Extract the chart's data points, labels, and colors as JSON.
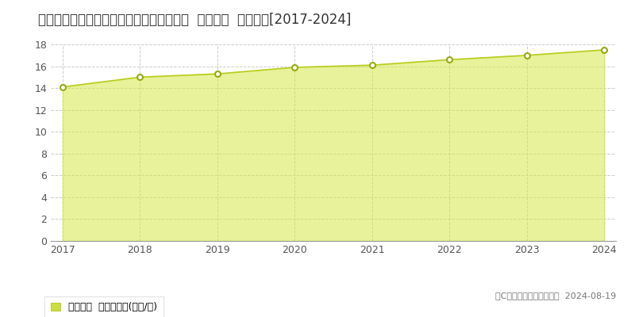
{
  "title": "埼玉県日高市大字大谷沢字藤塚１５番３外  地価公示  地価推移[2017-2024]",
  "years": [
    2017,
    2018,
    2019,
    2020,
    2021,
    2022,
    2023,
    2024
  ],
  "values": [
    14.1,
    15.0,
    15.3,
    15.9,
    16.1,
    16.6,
    17.0,
    17.5
  ],
  "ylim": [
    0,
    18
  ],
  "yticks": [
    0,
    2,
    4,
    6,
    8,
    10,
    12,
    14,
    16,
    18
  ],
  "fill_color": "#d4e84a",
  "fill_alpha": 0.55,
  "line_color": "#b8cc20",
  "marker_facecolor": "#ffffff",
  "marker_edgecolor": "#96aa10",
  "background_color": "#ffffff",
  "plot_bg_color": "#ffffff",
  "grid_color": "#cccccc",
  "legend_label": "地価公示  平均坪単価(万円/坪)",
  "legend_marker_color": "#ccdd44",
  "copyright_text": "（C）土地価格ドットコム  2024-08-19",
  "title_fontsize": 12,
  "tick_fontsize": 9,
  "legend_fontsize": 9,
  "copyright_fontsize": 8
}
